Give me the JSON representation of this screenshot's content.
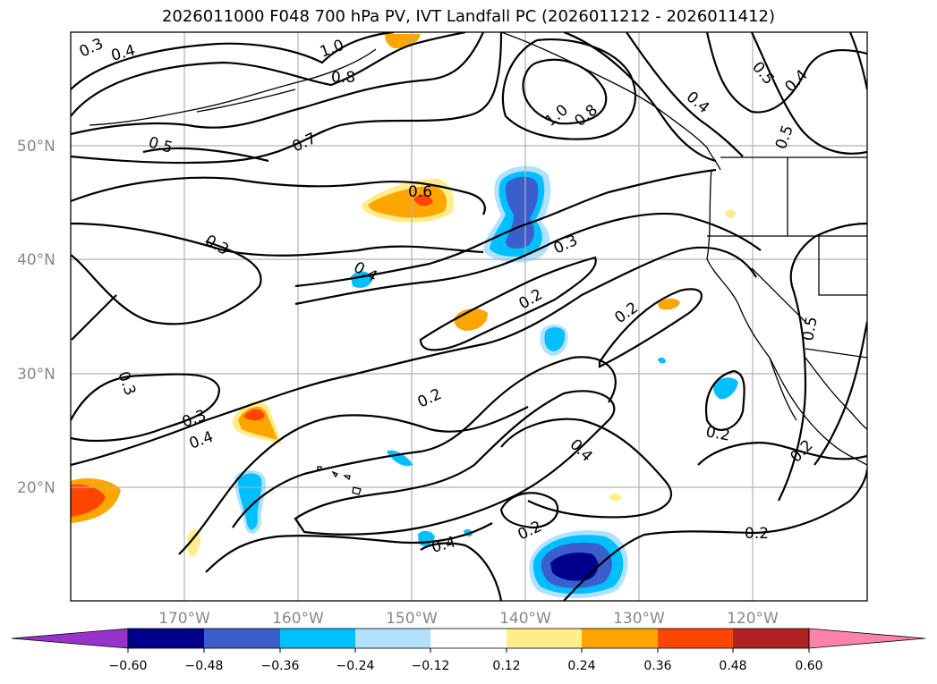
{
  "title": "2026011000 F048 700 hPa PV, IVT Landfall PC (2026011212 - 2026011412)",
  "lat_labels": [
    "50°N",
    "40°N",
    "30°N",
    "20°N"
  ],
  "lon_labels": [
    "170°W",
    "160°W",
    "150°W",
    "140°W",
    "130°W",
    "120°W"
  ],
  "contour_labels": [
    "0.3",
    "0.4",
    "1.0",
    "0.8",
    "0.5",
    "0.4",
    "1.0",
    "0.8",
    "0.4",
    "0.5",
    "0.7",
    "0.5",
    "0.6",
    "0.3",
    "0.4",
    "0.3",
    "0.2",
    "0.2",
    "0.3",
    "0.2",
    "0.3",
    "0.4",
    "0.2",
    "0.4",
    "0.2",
    "0.2",
    "0.4",
    "0.2",
    "0.5"
  ],
  "colorbar": {
    "ticks": [
      "−0.60",
      "−0.48",
      "−0.36",
      "−0.24",
      "−0.12",
      "0.12",
      "0.24",
      "0.36",
      "0.48",
      "0.60"
    ],
    "colors": [
      "#9932cc",
      "#00008b",
      "#3a5fcd",
      "#00bfff",
      "#b0e2ff",
      "#ffffff",
      "#ffec8b",
      "#ffa500",
      "#ff4500",
      "#b22222",
      "#ff82ab"
    ]
  },
  "palette": {
    "pos_light": "#ffec8b",
    "pos_mid": "#ffa500",
    "pos_high": "#ff4500",
    "neg_light": "#b0e2ff",
    "neg_mid": "#00bfff",
    "neg_high": "#3a5fcd",
    "neg_max": "#00008b"
  }
}
